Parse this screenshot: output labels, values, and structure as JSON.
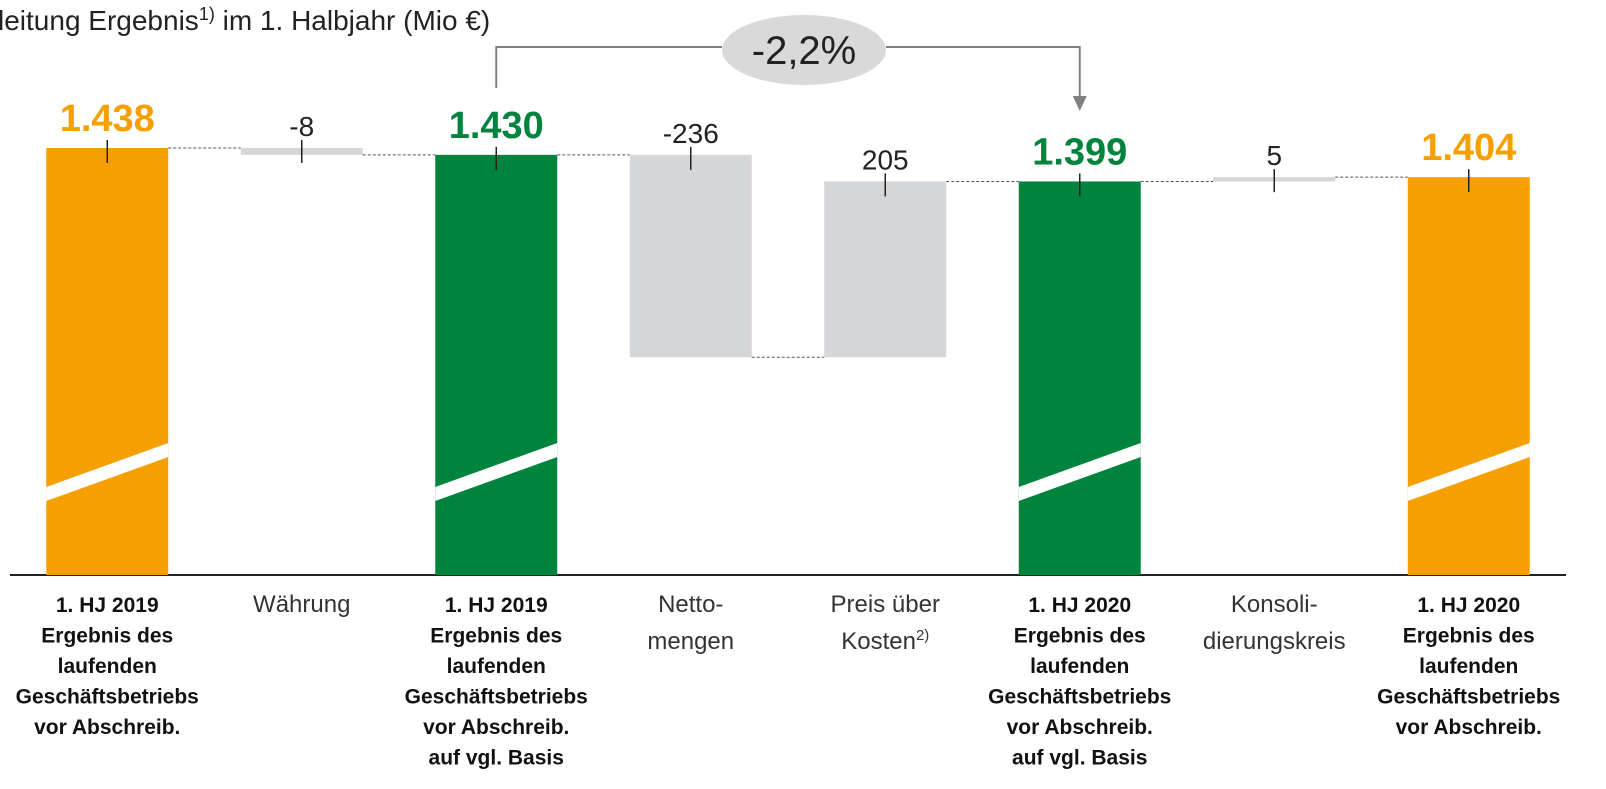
{
  "chart_data": {
    "type": "waterfall",
    "title": {
      "text": "leitung Ergebnis",
      "sup": "1)",
      "rest": " im 1. Halbjahr (Mio €)"
    },
    "categories": [
      [
        "1. HJ 2019",
        "Ergebnis des",
        "laufenden",
        "Geschäftsbetriebs",
        "vor Abschreib."
      ],
      [
        "Währung"
      ],
      [
        "1. HJ 2019",
        "Ergebnis des",
        "laufenden",
        "Geschäftsbetriebs",
        "vor Abschreib.",
        "auf vgl. Basis"
      ],
      [
        "Netto-",
        "mengen"
      ],
      [
        "Preis über",
        {
          "text": "Kosten",
          "sup": "2)"
        }
      ],
      [
        "1. HJ 2020",
        "Ergebnis des",
        "laufenden",
        "Geschäftsbetriebs",
        "vor Abschreib.",
        "auf vgl. Basis"
      ],
      [
        "Konsoli-",
        "dierungskreis"
      ],
      [
        "1. HJ 2020",
        "Ergebnis des",
        "laufenden",
        "Geschäftsbetriebs",
        "vor Abschreib."
      ]
    ],
    "values": [
      1438,
      -8,
      1430,
      -236,
      205,
      1399,
      5,
      1404
    ],
    "value_labels": [
      "1.438",
      "-8",
      "1.430",
      "-236",
      "205",
      "1.399",
      "5",
      "1.404"
    ],
    "bar_kinds": [
      "total",
      "delta",
      "total",
      "delta",
      "delta",
      "total",
      "delta",
      "total"
    ],
    "colors": [
      "#f5a000",
      "#d5d6d8",
      "#00843d",
      "#d5d6d8",
      "#d5d6d8",
      "#00843d",
      "#d5d6d8",
      "#f5a000"
    ],
    "ylim": [
      940,
      1480
    ],
    "annotation": "-2,2%"
  }
}
